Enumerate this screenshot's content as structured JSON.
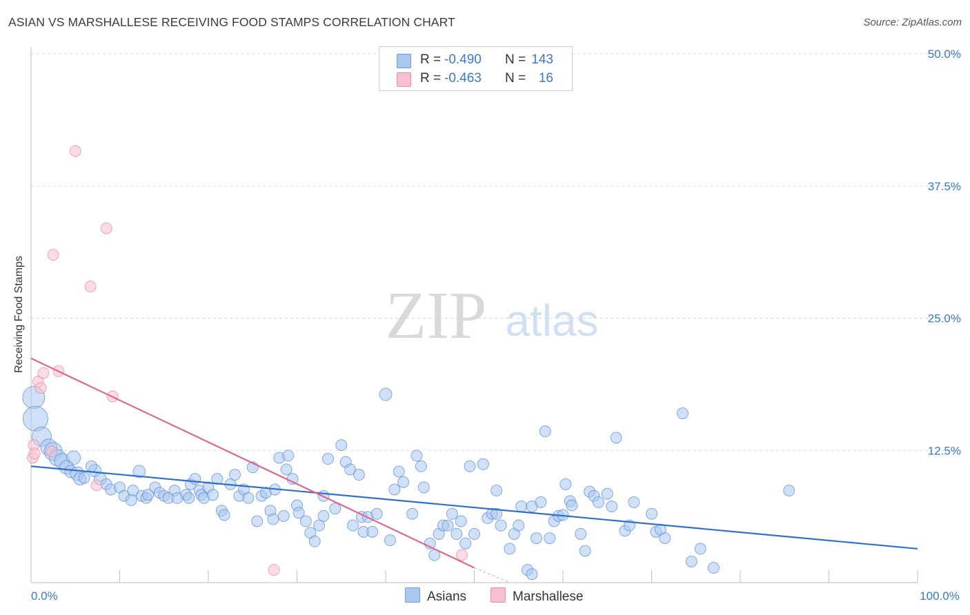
{
  "header": {
    "title": "ASIAN VS MARSHALLESE RECEIVING FOOD STAMPS CORRELATION CHART",
    "source": "Source: ZipAtlas.com"
  },
  "watermark": {
    "zip": "ZIP",
    "atlas": "atlas"
  },
  "legend": {
    "rows": [
      {
        "r_label": "R =",
        "r_value": "-0.490",
        "n_label": "N =",
        "n_value": "143",
        "color": "#a9c8f0",
        "border": "#6f9bd6"
      },
      {
        "r_label": "R =",
        "r_value": "-0.463",
        "n_label": "N =",
        "n_value": "16",
        "color": "#f7c0d0",
        "border": "#e88aa8"
      }
    ]
  },
  "bottom_legend": {
    "asians": "Asians",
    "marshallese": "Marshallese"
  },
  "colors": {
    "asian_fill": "#a9c8f0",
    "asian_stroke": "#5f8fd0",
    "asian_line": "#2e6fc9",
    "marsh_fill": "#f7c0d0",
    "marsh_stroke": "#e88aa8",
    "marsh_line": "#e06690",
    "tick_text": "#3a78c9",
    "grid": "#d8d8d8"
  },
  "chart_data": {
    "type": "scatter",
    "title": "ASIAN VS MARSHALLESE RECEIVING FOOD STAMPS CORRELATION CHART",
    "xlabel": "",
    "ylabel": "Receiving Food Stamps",
    "xlim": [
      0,
      100
    ],
    "ylim": [
      0,
      50
    ],
    "y_ticks": [
      {
        "value": 12.5,
        "label": "12.5%"
      },
      {
        "value": 25.0,
        "label": "25.0%"
      },
      {
        "value": 37.5,
        "label": "37.5%"
      },
      {
        "value": 50.0,
        "label": "50.0%"
      }
    ],
    "x_tick_labels": [
      {
        "value": 0,
        "label": "0.0%"
      },
      {
        "value": 100,
        "label": "100.0%"
      }
    ],
    "x_minor_ticks": [
      10,
      20,
      30,
      40,
      50,
      60,
      70,
      80,
      90,
      100
    ],
    "grid": true,
    "series": [
      {
        "name": "Asians",
        "r": -0.49,
        "n": 143,
        "trend": {
          "x": [
            0,
            100
          ],
          "y": [
            11.0,
            3.2
          ]
        },
        "points": [
          [
            0.3,
            17.5,
            16
          ],
          [
            0.5,
            15.5,
            18
          ],
          [
            1.2,
            13.8,
            14
          ],
          [
            2.0,
            12.8,
            12
          ],
          [
            2.5,
            12.4,
            13
          ],
          [
            3.0,
            11.8,
            12
          ],
          [
            3.5,
            11.5,
            11
          ],
          [
            4.8,
            11.8,
            10
          ],
          [
            4.0,
            10.9,
            10
          ],
          [
            4.5,
            10.5,
            9
          ],
          [
            5.2,
            10.3,
            10
          ],
          [
            5.5,
            9.8,
            9
          ],
          [
            6.0,
            9.9,
            8
          ],
          [
            7.2,
            10.6,
            9
          ],
          [
            6.8,
            11.0,
            8
          ],
          [
            7.8,
            9.8,
            9
          ],
          [
            8.5,
            9.3,
            8
          ],
          [
            9.0,
            8.8,
            8
          ],
          [
            10.0,
            9.0,
            8
          ],
          [
            10.5,
            8.2,
            8
          ],
          [
            11.5,
            8.7,
            8
          ],
          [
            11.3,
            7.8,
            8
          ],
          [
            12.2,
            10.5,
            9
          ],
          [
            12.5,
            8.2,
            8
          ],
          [
            13.0,
            8.0,
            8
          ],
          [
            13.2,
            8.3,
            8
          ],
          [
            14.0,
            9.0,
            8
          ],
          [
            14.5,
            8.5,
            8
          ],
          [
            15.0,
            8.2,
            8
          ],
          [
            15.5,
            8.0,
            8
          ],
          [
            16.2,
            8.7,
            8
          ],
          [
            16.5,
            8.0,
            8
          ],
          [
            17.5,
            8.3,
            8
          ],
          [
            17.8,
            8.0,
            8
          ],
          [
            18.0,
            9.3,
            8
          ],
          [
            18.5,
            9.8,
            8
          ],
          [
            19.0,
            8.7,
            8
          ],
          [
            19.2,
            8.3,
            8
          ],
          [
            19.5,
            8.0,
            8
          ],
          [
            20.0,
            9.0,
            8
          ],
          [
            20.5,
            8.3,
            8
          ],
          [
            21.0,
            9.8,
            8
          ],
          [
            21.5,
            6.8,
            8
          ],
          [
            21.8,
            6.4,
            8
          ],
          [
            22.5,
            9.3,
            8
          ],
          [
            23.0,
            10.2,
            8
          ],
          [
            23.5,
            8.2,
            8
          ],
          [
            24.0,
            8.8,
            8
          ],
          [
            24.5,
            8.0,
            8
          ],
          [
            25.0,
            10.9,
            8
          ],
          [
            25.5,
            5.8,
            8
          ],
          [
            26.0,
            8.2,
            8
          ],
          [
            26.5,
            8.5,
            8
          ],
          [
            27.0,
            6.8,
            8
          ],
          [
            27.3,
            6.0,
            8
          ],
          [
            27.5,
            8.8,
            8
          ],
          [
            28.0,
            11.8,
            8
          ],
          [
            28.5,
            6.3,
            8
          ],
          [
            28.8,
            10.7,
            8
          ],
          [
            29.0,
            12.0,
            8
          ],
          [
            29.5,
            9.8,
            8
          ],
          [
            30.0,
            7.3,
            8
          ],
          [
            30.2,
            6.6,
            8
          ],
          [
            31.0,
            5.8,
            8
          ],
          [
            31.5,
            4.7,
            8
          ],
          [
            32.0,
            3.9,
            8
          ],
          [
            32.5,
            5.4,
            8
          ],
          [
            33.0,
            8.2,
            8
          ],
          [
            33.5,
            11.7,
            8
          ],
          [
            33.0,
            6.3,
            8
          ],
          [
            34.3,
            7.0,
            8
          ],
          [
            35.0,
            13.0,
            8
          ],
          [
            35.5,
            11.4,
            8
          ],
          [
            36.0,
            10.7,
            8
          ],
          [
            36.3,
            5.4,
            8
          ],
          [
            37.0,
            10.2,
            8
          ],
          [
            37.3,
            6.2,
            8
          ],
          [
            37.5,
            4.8,
            8
          ],
          [
            38.0,
            6.2,
            8
          ],
          [
            38.5,
            4.8,
            8
          ],
          [
            39.0,
            6.5,
            8
          ],
          [
            40.0,
            17.8,
            9
          ],
          [
            40.5,
            4.0,
            8
          ],
          [
            41.0,
            8.8,
            8
          ],
          [
            41.5,
            10.5,
            8
          ],
          [
            42.0,
            9.5,
            8
          ],
          [
            43.0,
            6.5,
            8
          ],
          [
            43.5,
            12.0,
            8
          ],
          [
            44.0,
            11.0,
            8
          ],
          [
            44.3,
            9.0,
            8
          ],
          [
            45.0,
            3.7,
            8
          ],
          [
            45.5,
            2.6,
            8
          ],
          [
            46.0,
            4.6,
            8
          ],
          [
            46.5,
            5.4,
            8
          ],
          [
            47.0,
            5.4,
            8
          ],
          [
            47.5,
            6.5,
            8
          ],
          [
            48.0,
            4.6,
            8
          ],
          [
            48.5,
            5.8,
            8
          ],
          [
            49.0,
            3.7,
            8
          ],
          [
            49.5,
            11.0,
            8
          ],
          [
            50.0,
            4.6,
            8
          ],
          [
            51.0,
            11.2,
            8
          ],
          [
            51.5,
            6.1,
            8
          ],
          [
            52.0,
            6.5,
            8
          ],
          [
            52.5,
            6.5,
            8
          ],
          [
            52.5,
            8.7,
            8
          ],
          [
            53.0,
            5.4,
            8
          ],
          [
            54.0,
            3.2,
            8
          ],
          [
            54.5,
            4.6,
            8
          ],
          [
            55.0,
            5.4,
            8
          ],
          [
            55.3,
            7.2,
            8
          ],
          [
            56.0,
            1.2,
            8
          ],
          [
            56.5,
            0.8,
            8
          ],
          [
            56.5,
            7.2,
            8
          ],
          [
            57.0,
            4.2,
            8
          ],
          [
            57.5,
            7.6,
            8
          ],
          [
            58.0,
            14.3,
            8
          ],
          [
            58.5,
            4.2,
            8
          ],
          [
            59.0,
            5.8,
            8
          ],
          [
            59.5,
            6.3,
            8
          ],
          [
            60.0,
            6.4,
            8
          ],
          [
            60.3,
            9.3,
            8
          ],
          [
            60.8,
            7.7,
            8
          ],
          [
            61.0,
            7.3,
            8
          ],
          [
            62.0,
            4.6,
            8
          ],
          [
            62.5,
            3.0,
            8
          ],
          [
            63.0,
            8.6,
            8
          ],
          [
            63.5,
            8.2,
            8
          ],
          [
            64.0,
            7.6,
            8
          ],
          [
            65.0,
            8.4,
            8
          ],
          [
            65.5,
            7.2,
            8
          ],
          [
            66.0,
            13.7,
            8
          ],
          [
            67.0,
            4.9,
            8
          ],
          [
            67.5,
            5.4,
            8
          ],
          [
            68.0,
            7.6,
            8
          ],
          [
            70.0,
            6.5,
            8
          ],
          [
            70.5,
            4.8,
            8
          ],
          [
            71.0,
            5.0,
            8
          ],
          [
            71.5,
            4.2,
            8
          ],
          [
            73.5,
            16.0,
            8
          ],
          [
            74.5,
            2.0,
            8
          ],
          [
            75.5,
            3.2,
            8
          ],
          [
            77.0,
            1.4,
            8
          ],
          [
            85.5,
            8.7,
            8
          ]
        ]
      },
      {
        "name": "Marshallese",
        "r": -0.463,
        "n": 16,
        "trend": {
          "x": [
            0,
            50
          ],
          "y": [
            21.2,
            1.4
          ]
        },
        "trend_dashed_extension": {
          "x": [
            50,
            54
          ],
          "y": [
            1.4,
            0.0
          ]
        },
        "points": [
          [
            0.2,
            11.8,
            8
          ],
          [
            0.3,
            13.0,
            8
          ],
          [
            0.4,
            12.2,
            8
          ],
          [
            0.8,
            19.0,
            8
          ],
          [
            1.1,
            18.4,
            8
          ],
          [
            1.4,
            19.8,
            8
          ],
          [
            3.1,
            20.0,
            8
          ],
          [
            5.0,
            40.8,
            8
          ],
          [
            8.5,
            33.5,
            8
          ],
          [
            2.5,
            31.0,
            8
          ],
          [
            6.7,
            28.0,
            8
          ],
          [
            9.2,
            17.6,
            8
          ],
          [
            7.4,
            9.2,
            8
          ],
          [
            27.4,
            1.2,
            8
          ],
          [
            48.6,
            2.6,
            8
          ],
          [
            2.3,
            12.4,
            8
          ]
        ]
      }
    ]
  }
}
